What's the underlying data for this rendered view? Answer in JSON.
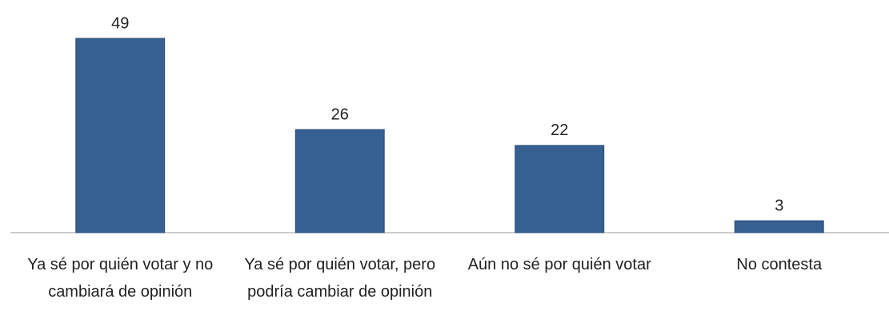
{
  "chart_data": {
    "type": "bar",
    "categories": [
      "Ya sé por quién votar y no cambiará de opinión",
      "Ya sé por quién votar, pero podría cambiar de opinión",
      "Aún no sé por quién votar",
      "No contesta"
    ],
    "values": [
      49,
      26,
      22,
      3
    ],
    "color": "#365f92"
  }
}
